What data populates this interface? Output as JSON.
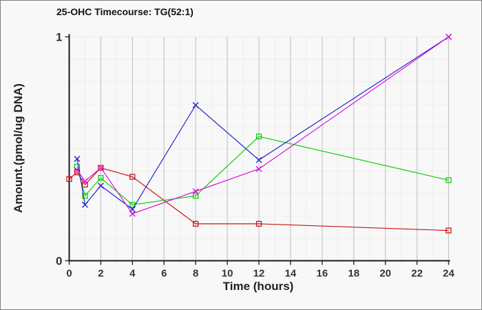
{
  "window": {
    "background_color": "#f8f8f8",
    "border_color": "#7e7e7e"
  },
  "chart_data": {
    "type": "line",
    "title": "25-OHC Timecourse: TG(52:1)",
    "xlabel": "Time (hours)",
    "ylabel": "Amount.(pmol/ug DNA)",
    "xlim": [
      0,
      24
    ],
    "ylim": [
      0,
      1
    ],
    "x_ticks": [
      0,
      2,
      4,
      6,
      8,
      10,
      12,
      14,
      16,
      18,
      20,
      22,
      24
    ],
    "y_ticks": [
      0,
      1
    ],
    "grid": {
      "vertical_major_every": 2,
      "vertical_minor_every": 1,
      "horizontal_minor_every": 0.1,
      "major_color": "#c6c6c6",
      "minor_color": "#ededed"
    },
    "legend": false,
    "series": [
      {
        "name": "red-squares",
        "color": "#cc1111",
        "marker": "square",
        "x": [
          0,
          0.5,
          1,
          2,
          4,
          8,
          12,
          24
        ],
        "y": [
          0.365,
          0.395,
          0.34,
          0.415,
          0.375,
          0.165,
          0.165,
          0.135
        ]
      },
      {
        "name": "green-squares",
        "color": "#11cc11",
        "marker": "square",
        "x": [
          0.5,
          1,
          2,
          4,
          8,
          12,
          24
        ],
        "y": [
          0.42,
          0.29,
          0.37,
          0.25,
          0.29,
          0.555,
          0.36
        ]
      },
      {
        "name": "blue-x",
        "color": "#2222cc",
        "marker": "x",
        "x": [
          0.5,
          1,
          2,
          4,
          8,
          12,
          24
        ],
        "y": [
          0.455,
          0.25,
          0.335,
          0.23,
          0.695,
          0.45,
          1.0
        ]
      },
      {
        "name": "magenta-x",
        "color": "#dd11dd",
        "marker": "x",
        "x": [
          0.5,
          1,
          2,
          4,
          8,
          12,
          24
        ],
        "y": [
          0.405,
          0.355,
          0.415,
          0.21,
          0.31,
          0.41,
          1.0
        ]
      }
    ]
  }
}
